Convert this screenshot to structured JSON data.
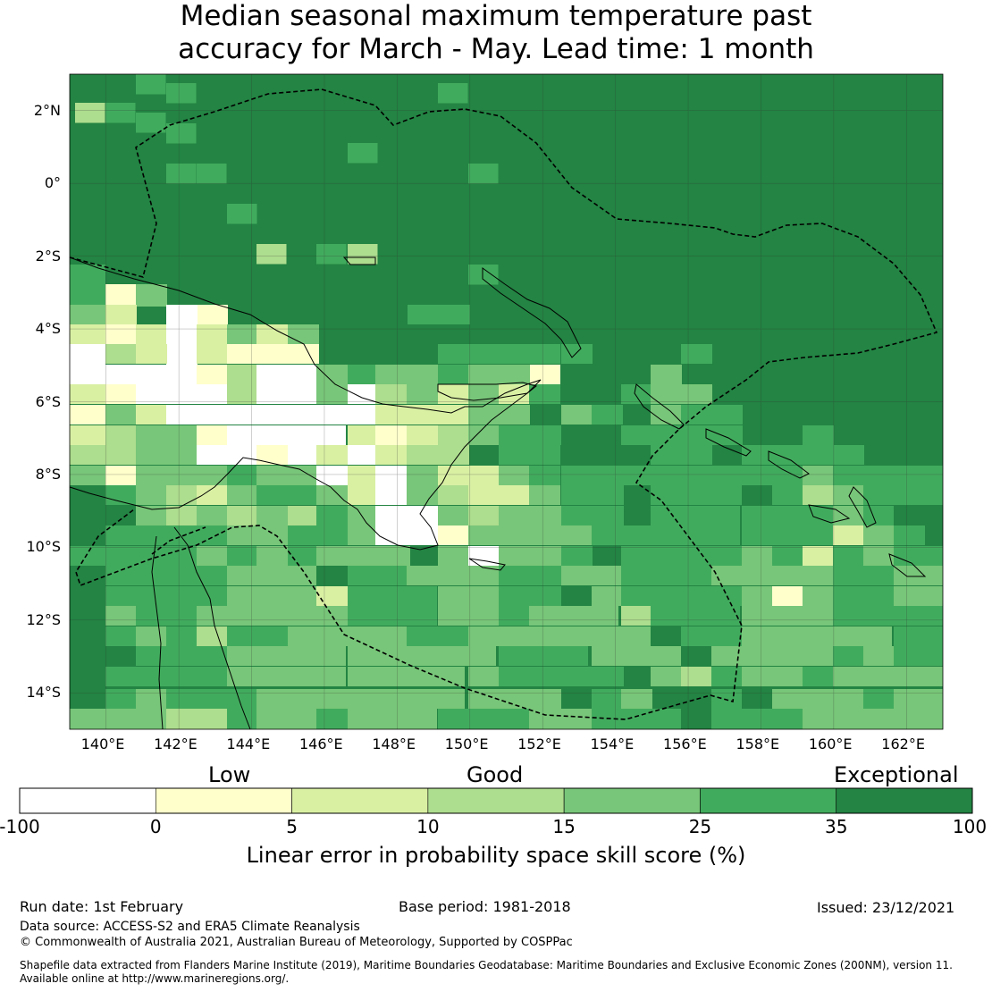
{
  "title": {
    "line1": "Median seasonal maximum temperature past",
    "line2": "accuracy for March - May. Lead time: 1 month"
  },
  "map": {
    "lat_labels": [
      "2°N",
      "0°",
      "2°S",
      "4°S",
      "6°S",
      "8°S",
      "10°S",
      "12°S",
      "14°S"
    ],
    "lon_labels": [
      "140°E",
      "142°E",
      "144°E",
      "146°E",
      "148°E",
      "150°E",
      "152°E",
      "154°E",
      "156°E",
      "158°E",
      "160°E",
      "162°E"
    ],
    "extent": {
      "lon_min": 139,
      "lon_max": 163,
      "lat_min": -15,
      "lat_max": 3
    },
    "background_class": 6,
    "background_note": "Most of the map is Exceptional skill (35-100)"
  },
  "colorbar": {
    "categories": [
      "Low",
      "Good",
      "Exceptional"
    ],
    "ticks": [
      "-100",
      "0",
      "5",
      "10",
      "15",
      "25",
      "35",
      "100"
    ],
    "colors": [
      "#ffffff",
      "#ffffcc",
      "#d9f0a3",
      "#addd8e",
      "#78c679",
      "#41ab5d",
      "#238443"
    ],
    "xlabel": "Linear error in probability space skill score (%)"
  },
  "footer": {
    "run_date": "Run date: 1st February",
    "base_period": "Base period: 1981-2018",
    "issued": "Issued: 23/12/2021",
    "data_source": "Data source: ACCESS-S2 and ERA5 Climate Reanalysis",
    "copyright": "© Commonwealth of Australia 2021, Australian Bureau of Meteorology, Supported by COSPPac",
    "shapefile_1": "Shapefile data extracted from Flanders Marine Institute (2019), Maritime Boundaries Geodatabase: Maritime Boundaries and Exclusive Economic Zones (200NM), version 11.",
    "shapefile_2": "Available online at http://www.marineregions.org/."
  }
}
